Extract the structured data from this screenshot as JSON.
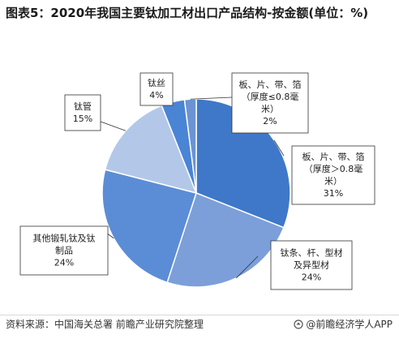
{
  "title": "图表5：2020年我国主要钛加工材出口产品结构-按金额(单位：%)",
  "chart_data": {
    "type": "pie",
    "title": "图表5：2020年我国主要钛加工材出口产品结构-按金额(单位：%)",
    "slices": [
      {
        "label": [
          "板、片、带、箔",
          "（厚度＞0.8毫",
          "米）"
        ],
        "value": 31,
        "value_label": "31%",
        "color": "#3f78c9"
      },
      {
        "label": [
          "钛条、杆、型材",
          "及异型材"
        ],
        "value": 24,
        "value_label": "24%",
        "color": "#7c9fd9"
      },
      {
        "label": [
          "其他锻轧钛及钛",
          "制品"
        ],
        "value": 24,
        "value_label": "24%",
        "color": "#5b8dd6"
      },
      {
        "label": [
          "钛管"
        ],
        "value": 15,
        "value_label": "15%",
        "color": "#b3c8e8"
      },
      {
        "label": [
          "钛丝"
        ],
        "value": 4,
        "value_label": "4%",
        "color": "#4a84d4"
      },
      {
        "label": [
          "板、片、带、箔",
          "（厚度≤0.8毫",
          "米）"
        ],
        "value": 2,
        "value_label": "2%",
        "color": "#6c93d3"
      }
    ],
    "start": "12 o'clock",
    "direction": "clockwise"
  },
  "footer": {
    "source": "资料来源：中国海关总署 前瞻产业研究院整理",
    "brand": "@前瞻经济学人APP"
  }
}
